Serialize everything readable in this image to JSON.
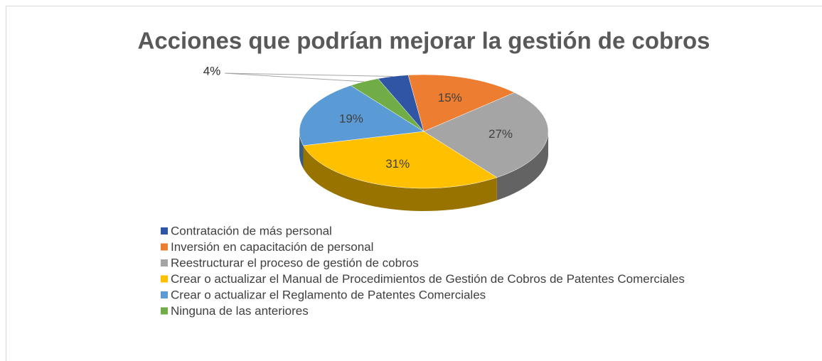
{
  "chart_data": {
    "type": "pie3d",
    "title": "Acciones que podrían mejorar la gestión de cobros",
    "categories": [
      "Contratación de más personal",
      "Inversión en capacitación de personal",
      "Reestructurar el proceso de gestión de cobros",
      "Crear o actualizar el Manual de Procedimientos de Gestión de Cobros de Patentes Comerciales",
      "Crear o actualizar el Reglamento de Patentes Comerciales",
      "Ninguna de las anteriores"
    ],
    "values": [
      4,
      15,
      27,
      31,
      19,
      4
    ],
    "value_labels": [
      "4%",
      "15%",
      "27%",
      "31%",
      "19%",
      "4%"
    ],
    "colors": [
      "#2f55a4",
      "#ed7d31",
      "#a5a5a5",
      "#ffc000",
      "#5b9bd5",
      "#70ad47"
    ],
    "legend": "bottom-left"
  }
}
